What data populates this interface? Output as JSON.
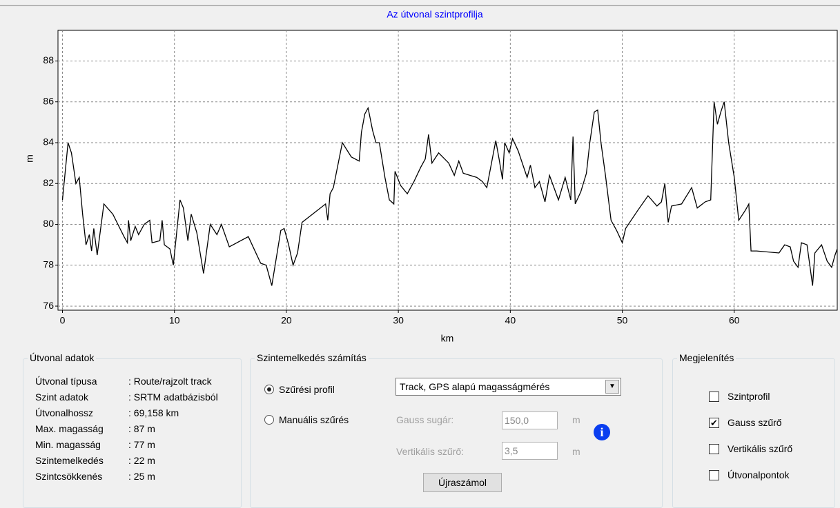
{
  "chart_data": {
    "type": "line",
    "title": "Az útvonal szintprofilja",
    "x_label": "km",
    "y_label": "m",
    "x": [
      0,
      0.5,
      0.8,
      1.2,
      1.5,
      1.8,
      2.1,
      2.4,
      2.6,
      2.8,
      3.1,
      3.7,
      4.5,
      5.5,
      5.8,
      5.9,
      6.1,
      6.5,
      6.8,
      7.3,
      7.8,
      8,
      8.7,
      8.9,
      9.1,
      9.6,
      9.9,
      10.5,
      10.8,
      11.2,
      11.5,
      12,
      12.6,
      13.2,
      13.8,
      14.2,
      14.9,
      16.6,
      17.7,
      18.2,
      18.7,
      19.5,
      19.8,
      20.2,
      20.6,
      21,
      21.4,
      23.5,
      23.7,
      23.9,
      24.2,
      25,
      25.8,
      26.5,
      26.7,
      27,
      27.3,
      27.7,
      28,
      28.3,
      28.8,
      29.2,
      29.6,
      29.7,
      30.2,
      30.8,
      31.4,
      32,
      32.4,
      32.7,
      33,
      33.6,
      34.5,
      35,
      35.4,
      35.8,
      37,
      37.5,
      37.9,
      38.7,
      39,
      39.3,
      39.5,
      39.9,
      40.2,
      40.7,
      41.5,
      41.8,
      42.2,
      42.6,
      43.1,
      43.5,
      44.3,
      44.9,
      45.4,
      45.6,
      45.8,
      46.3,
      46.8,
      47.1,
      47.5,
      47.8,
      48.1,
      48.5,
      49,
      49.5,
      50,
      50.3,
      51.4,
      52.3,
      53.1,
      53.5,
      53.8,
      54.1,
      54.4,
      55.3,
      56.2,
      56.7,
      57.4,
      57.9,
      58.2,
      58.5,
      58.8,
      59.1,
      59.5,
      60,
      60.4,
      61,
      61.3,
      61.5,
      62,
      64,
      64.5,
      65,
      65.3,
      65.7,
      66,
      66.5,
      67,
      67.2,
      67.8,
      68.3,
      68.7,
      69,
      69.2
    ],
    "values": [
      81.2,
      84,
      83.5,
      82,
      82.3,
      80.5,
      79,
      79.5,
      78.7,
      79.8,
      78.5,
      81,
      80.5,
      79.4,
      79.1,
      80.2,
      79.2,
      79.9,
      79.5,
      80,
      80.2,
      79.1,
      79.2,
      80.2,
      79,
      78.8,
      78,
      81.2,
      80.8,
      79.2,
      80.5,
      79.6,
      77.6,
      80,
      79.5,
      80,
      78.9,
      79.4,
      78.1,
      78,
      77,
      79.7,
      79.8,
      79,
      78,
      78.6,
      80.1,
      81,
      80.2,
      81.5,
      81.8,
      84,
      83.3,
      83.1,
      84.5,
      85.4,
      85.7,
      84.6,
      84,
      84,
      82.3,
      81.2,
      81,
      82.6,
      81.9,
      81.5,
      82.1,
      82.8,
      83.2,
      84.4,
      83,
      83.5,
      83,
      82.4,
      83.1,
      82.5,
      82.3,
      82.1,
      81.8,
      84.1,
      83.2,
      82.2,
      84,
      83.5,
      84.2,
      83.6,
      82.3,
      82.9,
      81.8,
      82.1,
      81.1,
      82.4,
      81.2,
      82.3,
      81.2,
      84.3,
      81,
      81.6,
      82.5,
      84,
      85.5,
      85.6,
      84,
      82.4,
      80.2,
      79.7,
      79.1,
      79.8,
      80.7,
      81.4,
      80.9,
      81.1,
      82,
      80.1,
      80.9,
      81,
      81.8,
      80.8,
      81.1,
      81.2,
      86,
      84.9,
      85.5,
      86,
      84,
      82.3,
      80.2,
      80.7,
      81,
      78.7,
      78.7,
      78.6,
      79,
      78.9,
      78.2,
      77.9,
      79.1,
      79,
      77,
      78.6,
      79,
      78.2,
      77.9,
      78.5,
      78.8
    ],
    "color": "#000000",
    "xlim": [
      -0.4,
      69.2
    ],
    "ylim": [
      75.8,
      89.5
    ],
    "xticks": [
      0,
      10,
      20,
      30,
      40,
      50,
      60
    ],
    "yticks": [
      76,
      78,
      80,
      82,
      84,
      86,
      88
    ],
    "grid": true
  },
  "route_panel": {
    "title": "Útvonal adatok",
    "rows": [
      {
        "label": "Útvonal típusa",
        "value": ": Route/rajzolt track"
      },
      {
        "label": "Szint adatok",
        "value": ": SRTM adatbázisból"
      },
      {
        "label": "Útvonalhossz",
        "value": ": 69,158 km"
      },
      {
        "label": "Max. magasság",
        "value": ": 87 m"
      },
      {
        "label": "Min. magasság",
        "value": ": 77 m"
      },
      {
        "label": "Szintemelkedés",
        "value": ": 22 m"
      },
      {
        "label": "Szintcsökkenés",
        "value": ": 25 m"
      }
    ]
  },
  "calc_panel": {
    "title": "Szintemelkedés számítás",
    "radios": [
      {
        "label": "Szűrési profil",
        "checked": true
      },
      {
        "label": "Manuális szűrés",
        "checked": false
      }
    ],
    "profile": "Track, GPS alapú magasságmérés",
    "gauss_label": "Gauss sugár:",
    "gauss_value": "150,0",
    "gauss_unit": "m",
    "vert_label": "Vertikális szűrő:",
    "vert_value": "3,5",
    "vert_unit": "m",
    "button": "Újraszámol"
  },
  "display_panel": {
    "title": "Megjelenítés",
    "checkboxes": [
      {
        "label": "Szintprofil",
        "checked": false
      },
      {
        "label": "Gauss szűrő",
        "checked": true
      },
      {
        "label": "Vertikális szűrő",
        "checked": false
      },
      {
        "label": "Útvonalpontok",
        "checked": false
      }
    ]
  }
}
